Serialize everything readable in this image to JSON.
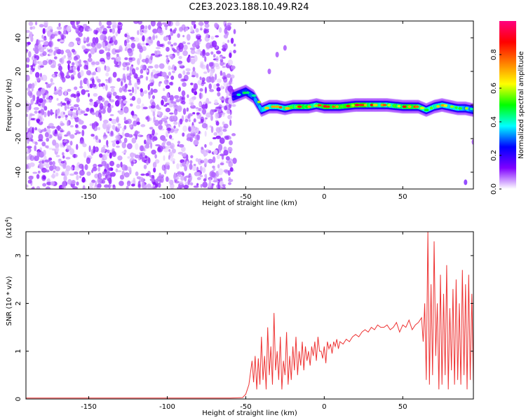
{
  "title": "C2E3.2023.188.10.49.R24",
  "chart_data": [
    {
      "type": "heatmap",
      "xlabel": "Height of straight line (km)",
      "ylabel": "Frequency (Hz)",
      "xlim": [
        -190,
        95
      ],
      "ylim": [
        -50,
        50
      ],
      "x_ticks": [
        -150,
        -100,
        -50,
        0,
        50
      ],
      "x_tick_labels": [
        "-150",
        "-100",
        "-50",
        "0",
        "50"
      ],
      "y_ticks": [
        -40,
        -20,
        0,
        20,
        40
      ],
      "y_tick_labels": [
        "-40",
        "-20",
        "0",
        "20",
        "40"
      ],
      "colorbar": {
        "label": "Normalized spectral amplitude",
        "range": [
          0,
          1
        ],
        "ticks": [
          0.0,
          0.2,
          0.4,
          0.6,
          0.8
        ],
        "tick_labels": [
          "0.0",
          "0.2",
          "0.4",
          "0.6",
          "0.8"
        ],
        "colors": [
          "#ffffff",
          "#7f00ff",
          "#0000ff",
          "#00ffff",
          "#00ff00",
          "#ffff00",
          "#ff7f00",
          "#ff0000",
          "#ff0080"
        ]
      },
      "noise_region_x": [
        -190,
        -57
      ],
      "noise_amplitude": 0.1,
      "ridge": {
        "x": [
          -58,
          -50,
          -45,
          -40,
          -35,
          -30,
          -25,
          -20,
          -15,
          -10,
          -5,
          0,
          10,
          20,
          30,
          40,
          50,
          55,
          60,
          65,
          70,
          75,
          80,
          85,
          90,
          95
        ],
        "frequency": [
          5,
          8,
          5,
          -3,
          -1,
          -1,
          -2,
          -1,
          -1,
          -1,
          0,
          -1,
          -1,
          0,
          0,
          0,
          -1,
          -1,
          -1,
          -3,
          -1,
          0,
          -1,
          -2,
          -2,
          -3
        ],
        "amplitude": [
          0.35,
          0.5,
          0.55,
          0.65,
          0.7,
          0.72,
          0.75,
          0.8,
          0.85,
          0.8,
          0.75,
          0.9,
          0.85,
          0.95,
          0.8,
          0.75,
          0.85,
          0.9,
          0.8,
          0.7,
          0.75,
          0.7,
          0.65,
          0.7,
          0.6,
          0.55
        ]
      },
      "spots": [
        {
          "x": -30,
          "frequency": 30,
          "amplitude": 0.1
        },
        {
          "x": -35,
          "frequency": 20,
          "amplitude": 0.1
        },
        {
          "x": -25,
          "frequency": 34,
          "amplitude": 0.1
        },
        {
          "x": 90,
          "frequency": -46,
          "amplitude": 0.15
        },
        {
          "x": 95,
          "frequency": -22,
          "amplitude": 0.1
        }
      ]
    },
    {
      "type": "line",
      "xlabel": "Height of straight line (km)",
      "ylabel": "SNR (10 * v/v)",
      "y_multiplier": "(x10",
      "y_multiplier_exp": "4",
      "y_multiplier_close": ")",
      "xlim": [
        -190,
        95
      ],
      "ylim": [
        0,
        3.5
      ],
      "x_ticks": [
        -150,
        -100,
        -50,
        0,
        50
      ],
      "x_tick_labels": [
        "-150",
        "-100",
        "-50",
        "0",
        "50"
      ],
      "y_ticks": [
        0,
        1,
        2,
        3
      ],
      "y_tick_labels": [
        "0",
        "1",
        "2",
        "3"
      ],
      "color": "#ee3333",
      "series": [
        {
          "x": [
            -190,
            -150,
            -100,
            -60,
            -52,
            -50,
            -48,
            -46,
            -45,
            -44,
            -43,
            -42,
            -41,
            -40,
            -39,
            -38,
            -37,
            -36,
            -35,
            -34,
            -33,
            -32,
            -31,
            -30,
            -29,
            -28,
            -27,
            -26,
            -25,
            -24,
            -23,
            -22,
            -21,
            -20,
            -19,
            -18,
            -17,
            -16,
            -15,
            -14,
            -13,
            -12,
            -11,
            -10,
            -9,
            -8,
            -7,
            -6,
            -5,
            -4,
            -3,
            -2,
            -1,
            0,
            1,
            2,
            3,
            4,
            5,
            6,
            7,
            8,
            9,
            10,
            12,
            14,
            16,
            18,
            20,
            22,
            24,
            26,
            28,
            30,
            32,
            34,
            36,
            38,
            40,
            42,
            44,
            46,
            48,
            50,
            52,
            54,
            56,
            58,
            60,
            62,
            63,
            64,
            65,
            66,
            67,
            68,
            69,
            70,
            71,
            72,
            73,
            74,
            75,
            76,
            77,
            78,
            79,
            80,
            81,
            82,
            83,
            84,
            85,
            86,
            87,
            88,
            89,
            90,
            91,
            92,
            93,
            94,
            95
          ],
          "y": [
            0.02,
            0.02,
            0.02,
            0.02,
            0.03,
            0.1,
            0.3,
            0.8,
            0.35,
            0.9,
            0.2,
            0.85,
            0.3,
            1.3,
            0.4,
            0.9,
            0.2,
            1.5,
            0.5,
            1.1,
            0.3,
            1.8,
            0.6,
            1.0,
            0.4,
            1.3,
            0.2,
            0.8,
            0.5,
            1.4,
            0.3,
            0.9,
            0.4,
            1.1,
            0.6,
            1.3,
            0.5,
            1.0,
            0.7,
            1.2,
            0.6,
            1.1,
            0.8,
            1.0,
            0.7,
            1.1,
            0.9,
            1.2,
            0.8,
            1.3,
            1.0,
            1.0,
            0.85,
            1.1,
            0.75,
            1.2,
            1.05,
            1.15,
            0.95,
            1.2,
            1.1,
            1.25,
            1.05,
            1.2,
            1.15,
            1.25,
            1.2,
            1.3,
            1.35,
            1.3,
            1.4,
            1.45,
            1.4,
            1.5,
            1.45,
            1.55,
            1.5,
            1.5,
            1.55,
            1.45,
            1.5,
            1.6,
            1.4,
            1.55,
            1.5,
            1.65,
            1.45,
            1.55,
            1.6,
            1.7,
            1.2,
            2.0,
            0.4,
            3.5,
            0.3,
            2.4,
            0.5,
            3.3,
            0.9,
            2.0,
            0.2,
            2.6,
            0.3,
            2.2,
            0.5,
            2.8,
            0.2,
            1.9,
            0.6,
            2.3,
            0.3,
            2.5,
            0.4,
            2.0,
            0.3,
            2.7,
            0.5,
            2.4,
            0.2,
            2.6,
            0.4,
            2.2,
            0.3
          ]
        }
      ]
    }
  ]
}
